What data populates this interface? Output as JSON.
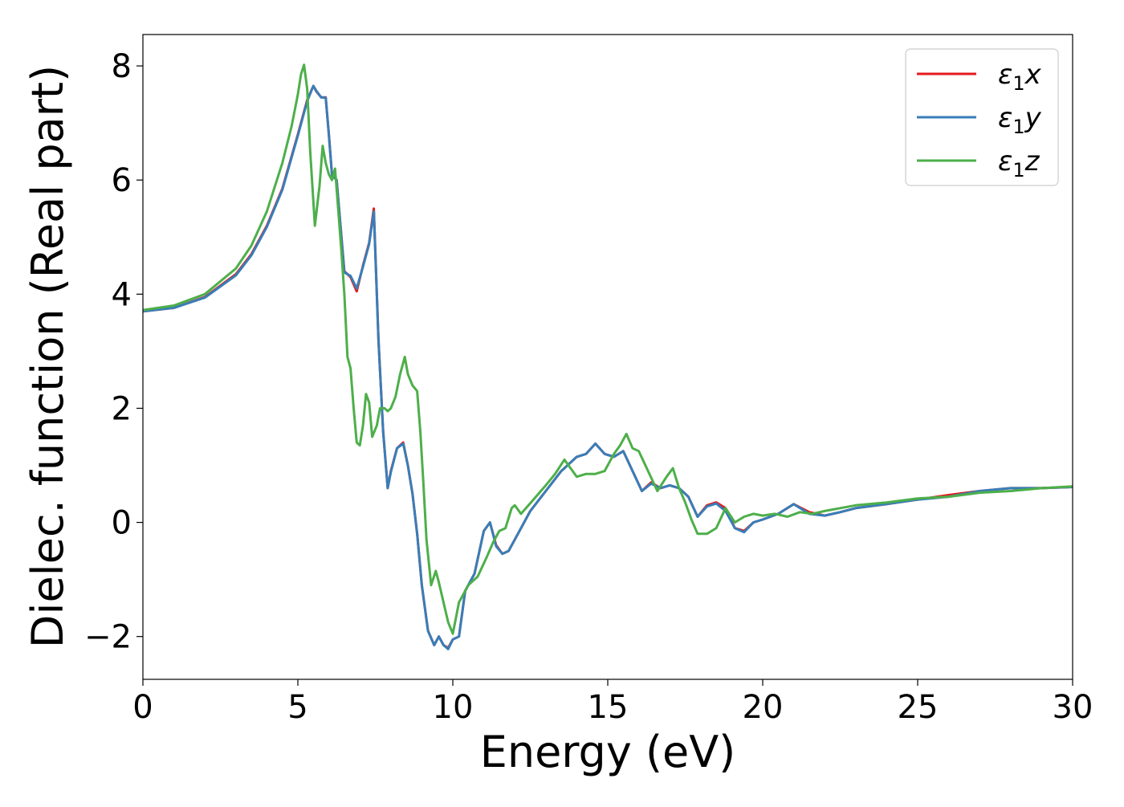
{
  "chart_data": {
    "type": "line",
    "title": "",
    "xlabel": "Energy (eV)",
    "ylabel": "Dielec. function (Real part)",
    "xlim": [
      0,
      30
    ],
    "ylim": [
      -2.75,
      8.55
    ],
    "xticks": [
      0,
      5,
      10,
      15,
      20,
      25,
      30
    ],
    "xtick_labels": [
      "0",
      "5",
      "10",
      "15",
      "20",
      "25",
      "30"
    ],
    "yticks": [
      -2,
      0,
      2,
      4,
      6,
      8
    ],
    "ytick_labels": [
      "−2",
      "0",
      "2",
      "4",
      "6",
      "8"
    ],
    "grid": false,
    "legend_position": "top-right",
    "series": [
      {
        "name": "ε₁x",
        "legend_main": "ε",
        "legend_sub": "1",
        "legend_tail": "x",
        "color": "#e41a1c",
        "x": [
          0,
          1,
          2,
          3,
          3.5,
          4,
          4.5,
          5,
          5.3,
          5.5,
          5.6,
          5.75,
          5.9,
          6.0,
          6.1,
          6.25,
          6.5,
          6.7,
          6.9,
          7.1,
          7.3,
          7.45,
          7.6,
          7.75,
          7.9,
          8.0,
          8.2,
          8.4,
          8.55,
          8.7,
          8.85,
          9.0,
          9.2,
          9.4,
          9.55,
          9.7,
          9.85,
          10.0,
          10.2,
          10.4,
          10.7,
          11.0,
          11.2,
          11.4,
          11.6,
          11.8,
          12.1,
          12.5,
          13.0,
          13.5,
          14.0,
          14.3,
          14.6,
          14.9,
          15.2,
          15.5,
          15.8,
          16.1,
          16.4,
          16.7,
          17.0,
          17.3,
          17.6,
          17.9,
          18.2,
          18.5,
          18.8,
          19.1,
          19.4,
          19.7,
          20.0,
          20.5,
          21.0,
          21.5,
          22.0,
          22.5,
          23.0,
          24.0,
          25.0,
          26.0,
          27.0,
          28.0,
          29.0,
          30.0
        ],
        "y": [
          3.7,
          3.76,
          3.95,
          4.35,
          4.7,
          5.2,
          5.85,
          6.8,
          7.4,
          7.65,
          7.55,
          7.45,
          7.45,
          6.8,
          6.1,
          6.0,
          4.4,
          4.3,
          4.05,
          4.5,
          4.9,
          5.5,
          3.2,
          1.6,
          0.6,
          0.9,
          1.3,
          1.4,
          1.0,
          0.5,
          -0.2,
          -1.1,
          -1.9,
          -2.15,
          -2.0,
          -2.15,
          -2.2,
          -2.05,
          -2.0,
          -1.2,
          -0.9,
          -0.15,
          0.0,
          -0.4,
          -0.55,
          -0.5,
          -0.2,
          0.2,
          0.55,
          0.9,
          1.15,
          1.2,
          1.38,
          1.2,
          1.15,
          1.25,
          0.9,
          0.55,
          0.7,
          0.6,
          0.65,
          0.6,
          0.45,
          0.1,
          0.3,
          0.35,
          0.25,
          -0.1,
          -0.15,
          0.0,
          0.05,
          0.15,
          0.32,
          0.18,
          0.12,
          0.18,
          0.25,
          0.32,
          0.4,
          0.48,
          0.55,
          0.6,
          0.6,
          0.62
        ]
      },
      {
        "name": "ε₁y",
        "legend_main": "ε",
        "legend_sub": "1",
        "legend_tail": "y",
        "color": "#377eb8",
        "x": [
          0,
          1,
          2,
          3,
          3.5,
          4,
          4.5,
          5,
          5.3,
          5.5,
          5.6,
          5.75,
          5.9,
          6.0,
          6.1,
          6.25,
          6.5,
          6.7,
          6.9,
          7.1,
          7.3,
          7.45,
          7.6,
          7.75,
          7.9,
          8.0,
          8.2,
          8.4,
          8.55,
          8.7,
          8.85,
          9.0,
          9.2,
          9.4,
          9.55,
          9.7,
          9.85,
          10.0,
          10.2,
          10.4,
          10.7,
          11.0,
          11.2,
          11.4,
          11.6,
          11.8,
          12.1,
          12.5,
          13.0,
          13.5,
          14.0,
          14.3,
          14.6,
          14.9,
          15.2,
          15.5,
          15.8,
          16.1,
          16.4,
          16.7,
          17.0,
          17.3,
          17.6,
          17.9,
          18.2,
          18.5,
          18.8,
          19.1,
          19.4,
          19.7,
          20.0,
          20.5,
          21.0,
          21.5,
          22.0,
          22.5,
          23.0,
          24.0,
          25.0,
          26.0,
          27.0,
          28.0,
          29.0,
          30.0
        ],
        "y": [
          3.7,
          3.76,
          3.94,
          4.33,
          4.68,
          5.18,
          5.83,
          6.78,
          7.38,
          7.65,
          7.56,
          7.45,
          7.44,
          6.8,
          6.08,
          6.0,
          4.38,
          4.32,
          4.1,
          4.48,
          4.88,
          5.45,
          3.2,
          1.6,
          0.6,
          0.88,
          1.3,
          1.38,
          1.0,
          0.5,
          -0.2,
          -1.1,
          -1.9,
          -2.15,
          -2.0,
          -2.15,
          -2.22,
          -2.05,
          -2.0,
          -1.2,
          -0.9,
          -0.15,
          0.0,
          -0.42,
          -0.55,
          -0.5,
          -0.2,
          0.2,
          0.55,
          0.9,
          1.15,
          1.2,
          1.38,
          1.2,
          1.15,
          1.25,
          0.9,
          0.55,
          0.68,
          0.6,
          0.65,
          0.6,
          0.45,
          0.1,
          0.28,
          0.33,
          0.2,
          -0.1,
          -0.17,
          0.0,
          0.05,
          0.15,
          0.32,
          0.15,
          0.12,
          0.18,
          0.25,
          0.32,
          0.4,
          0.45,
          0.55,
          0.6,
          0.6,
          0.62
        ]
      },
      {
        "name": "ε₁z",
        "legend_main": "ε",
        "legend_sub": "1",
        "legend_tail": "z",
        "color": "#4daf4a",
        "x": [
          0,
          1,
          2,
          3,
          3.5,
          4,
          4.5,
          4.8,
          5.0,
          5.1,
          5.2,
          5.3,
          5.4,
          5.55,
          5.7,
          5.8,
          5.9,
          6.0,
          6.1,
          6.2,
          6.3,
          6.4,
          6.5,
          6.6,
          6.7,
          6.8,
          6.9,
          7.0,
          7.1,
          7.2,
          7.3,
          7.4,
          7.55,
          7.65,
          7.8,
          7.9,
          8.0,
          8.15,
          8.3,
          8.45,
          8.55,
          8.7,
          8.85,
          8.95,
          9.05,
          9.15,
          9.3,
          9.45,
          9.55,
          9.7,
          9.85,
          10.0,
          10.2,
          10.5,
          10.8,
          11.1,
          11.3,
          11.5,
          11.7,
          11.9,
          12.0,
          12.2,
          12.6,
          13.0,
          13.3,
          13.6,
          13.8,
          14.0,
          14.3,
          14.6,
          14.9,
          15.2,
          15.4,
          15.6,
          15.8,
          16.0,
          16.3,
          16.6,
          16.9,
          17.1,
          17.3,
          17.5,
          17.7,
          17.9,
          18.2,
          18.5,
          18.8,
          19.1,
          19.4,
          19.7,
          20.0,
          20.4,
          20.8,
          21.2,
          21.6,
          22.0,
          22.5,
          23.0,
          24.0,
          25.0,
          26.0,
          27.0,
          28.0,
          29.0,
          30.0
        ],
        "y": [
          3.72,
          3.8,
          4.0,
          4.45,
          4.85,
          5.45,
          6.3,
          6.95,
          7.5,
          7.85,
          8.02,
          7.6,
          6.5,
          5.2,
          5.9,
          6.6,
          6.3,
          6.1,
          6.0,
          6.2,
          5.5,
          4.8,
          4.0,
          2.9,
          2.7,
          2.0,
          1.4,
          1.35,
          1.7,
          2.25,
          2.1,
          1.5,
          1.7,
          2.0,
          2.0,
          1.95,
          2.0,
          2.2,
          2.6,
          2.9,
          2.6,
          2.4,
          2.3,
          1.6,
          0.7,
          -0.3,
          -1.1,
          -0.85,
          -1.05,
          -1.4,
          -1.75,
          -1.95,
          -1.4,
          -1.1,
          -0.95,
          -0.6,
          -0.35,
          -0.15,
          -0.1,
          0.25,
          0.3,
          0.15,
          0.4,
          0.65,
          0.85,
          1.1,
          0.95,
          0.8,
          0.85,
          0.85,
          0.9,
          1.2,
          1.35,
          1.55,
          1.3,
          1.25,
          0.9,
          0.55,
          0.8,
          0.95,
          0.6,
          0.35,
          0.05,
          -0.2,
          -0.2,
          -0.1,
          0.25,
          0.0,
          0.1,
          0.15,
          0.12,
          0.15,
          0.1,
          0.18,
          0.15,
          0.2,
          0.25,
          0.3,
          0.35,
          0.42,
          0.45,
          0.52,
          0.55,
          0.6,
          0.63
        ]
      }
    ]
  }
}
